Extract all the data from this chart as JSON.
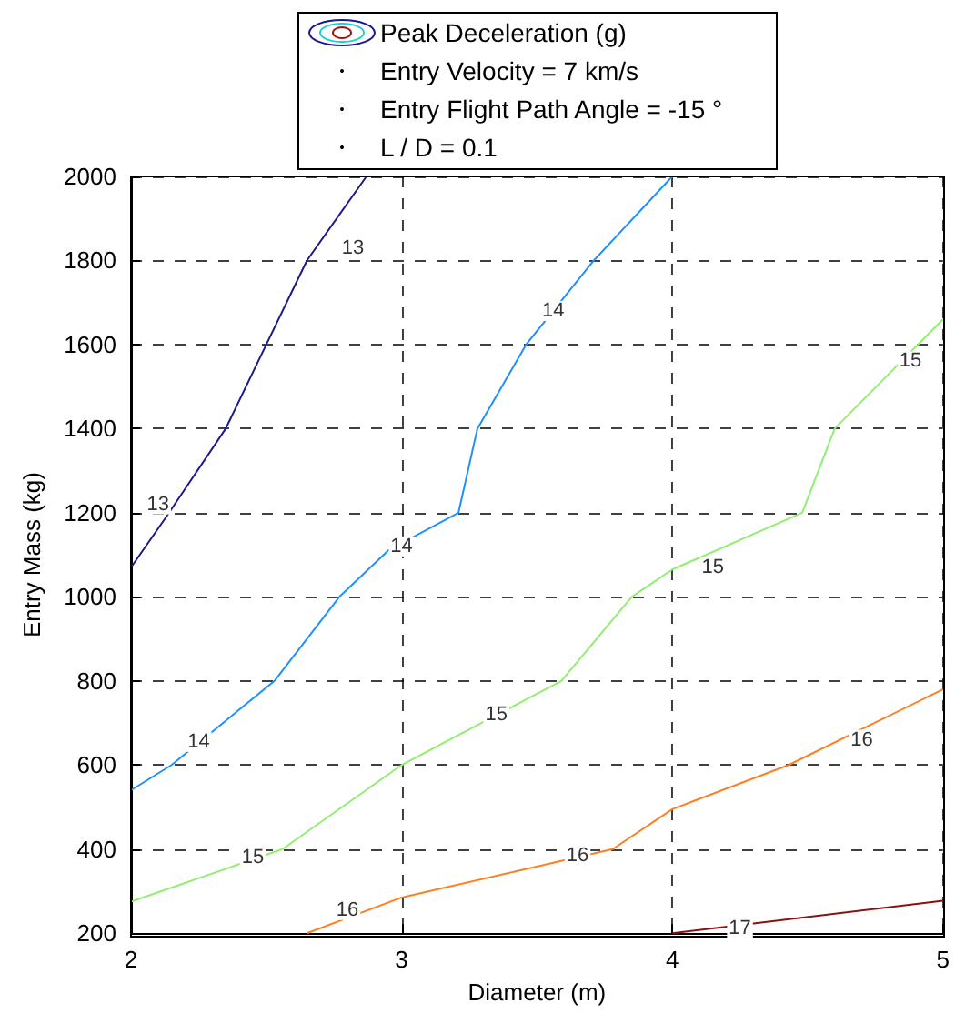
{
  "chart_data": {
    "type": "line",
    "xlabel": "Diameter (m)",
    "ylabel": "Entry Mass (kg)",
    "legend_title": "Peak Deceleration (g)",
    "xlim": [
      2,
      5
    ],
    "ylim": [
      200,
      2000
    ],
    "xticks": [
      2,
      3,
      4,
      5
    ],
    "yticks": [
      200,
      400,
      600,
      800,
      1000,
      1200,
      1400,
      1600,
      1800,
      2000
    ],
    "grid": true,
    "marker": "none",
    "line_style": "solid",
    "series": [
      {
        "color": "#1a1a8c",
        "x": [
          2,
          2.13,
          2.35,
          2.5,
          2.65,
          2.87
        ],
        "values": [
          1070,
          1190,
          1400,
          1600,
          1800,
          2000
        ]
      },
      {
        "color": "#1e90ff",
        "x": [
          2,
          2.15,
          2.53,
          2.77,
          2.95,
          3.21,
          3.28,
          3.46,
          3.71,
          4.0
        ],
        "values": [
          540,
          600,
          800,
          1000,
          1110,
          1200,
          1400,
          1600,
          1800,
          2000
        ]
      },
      {
        "color": "#90ee70",
        "x": [
          2,
          2.56,
          3.0,
          3.59,
          3.85,
          4.0,
          4.48,
          4.6,
          5
        ],
        "values": [
          275,
          400,
          600,
          800,
          1000,
          1065,
          1200,
          1400,
          1660
        ]
      },
      {
        "color": "#ff7f20",
        "x": [
          2.65,
          3.0,
          3.78,
          4.0,
          4.43,
          5
        ],
        "values": [
          200,
          285,
          400,
          495,
          600,
          780
        ]
      },
      {
        "color": "#8b1010",
        "x": [
          4,
          5
        ],
        "values": [
          200,
          277
        ]
      }
    ],
    "annotations": [
      "Entry Velocity = 7 km/s",
      "Entry Flight Path Angle = -15 °",
      "L / D = 0.1",
      {
        "text": "13",
        "x": 2.1,
        "y": 1220
      },
      {
        "text": "13",
        "x": 2.82,
        "y": 1830
      },
      {
        "text": "14",
        "x": 2.25,
        "y": 655
      },
      {
        "text": "14",
        "x": 3.0,
        "y": 1120
      },
      {
        "text": "14",
        "x": 3.56,
        "y": 1680
      },
      {
        "text": "15",
        "x": 2.45,
        "y": 380
      },
      {
        "text": "15",
        "x": 3.35,
        "y": 720
      },
      {
        "text": "15",
        "x": 4.15,
        "y": 1070
      },
      {
        "text": "15",
        "x": 4.88,
        "y": 1560
      },
      {
        "text": "16",
        "x": 2.8,
        "y": 255
      },
      {
        "text": "16",
        "x": 3.65,
        "y": 385
      },
      {
        "text": "16",
        "x": 4.7,
        "y": 660
      },
      {
        "text": "17",
        "x": 4.25,
        "y": 212
      }
    ]
  }
}
